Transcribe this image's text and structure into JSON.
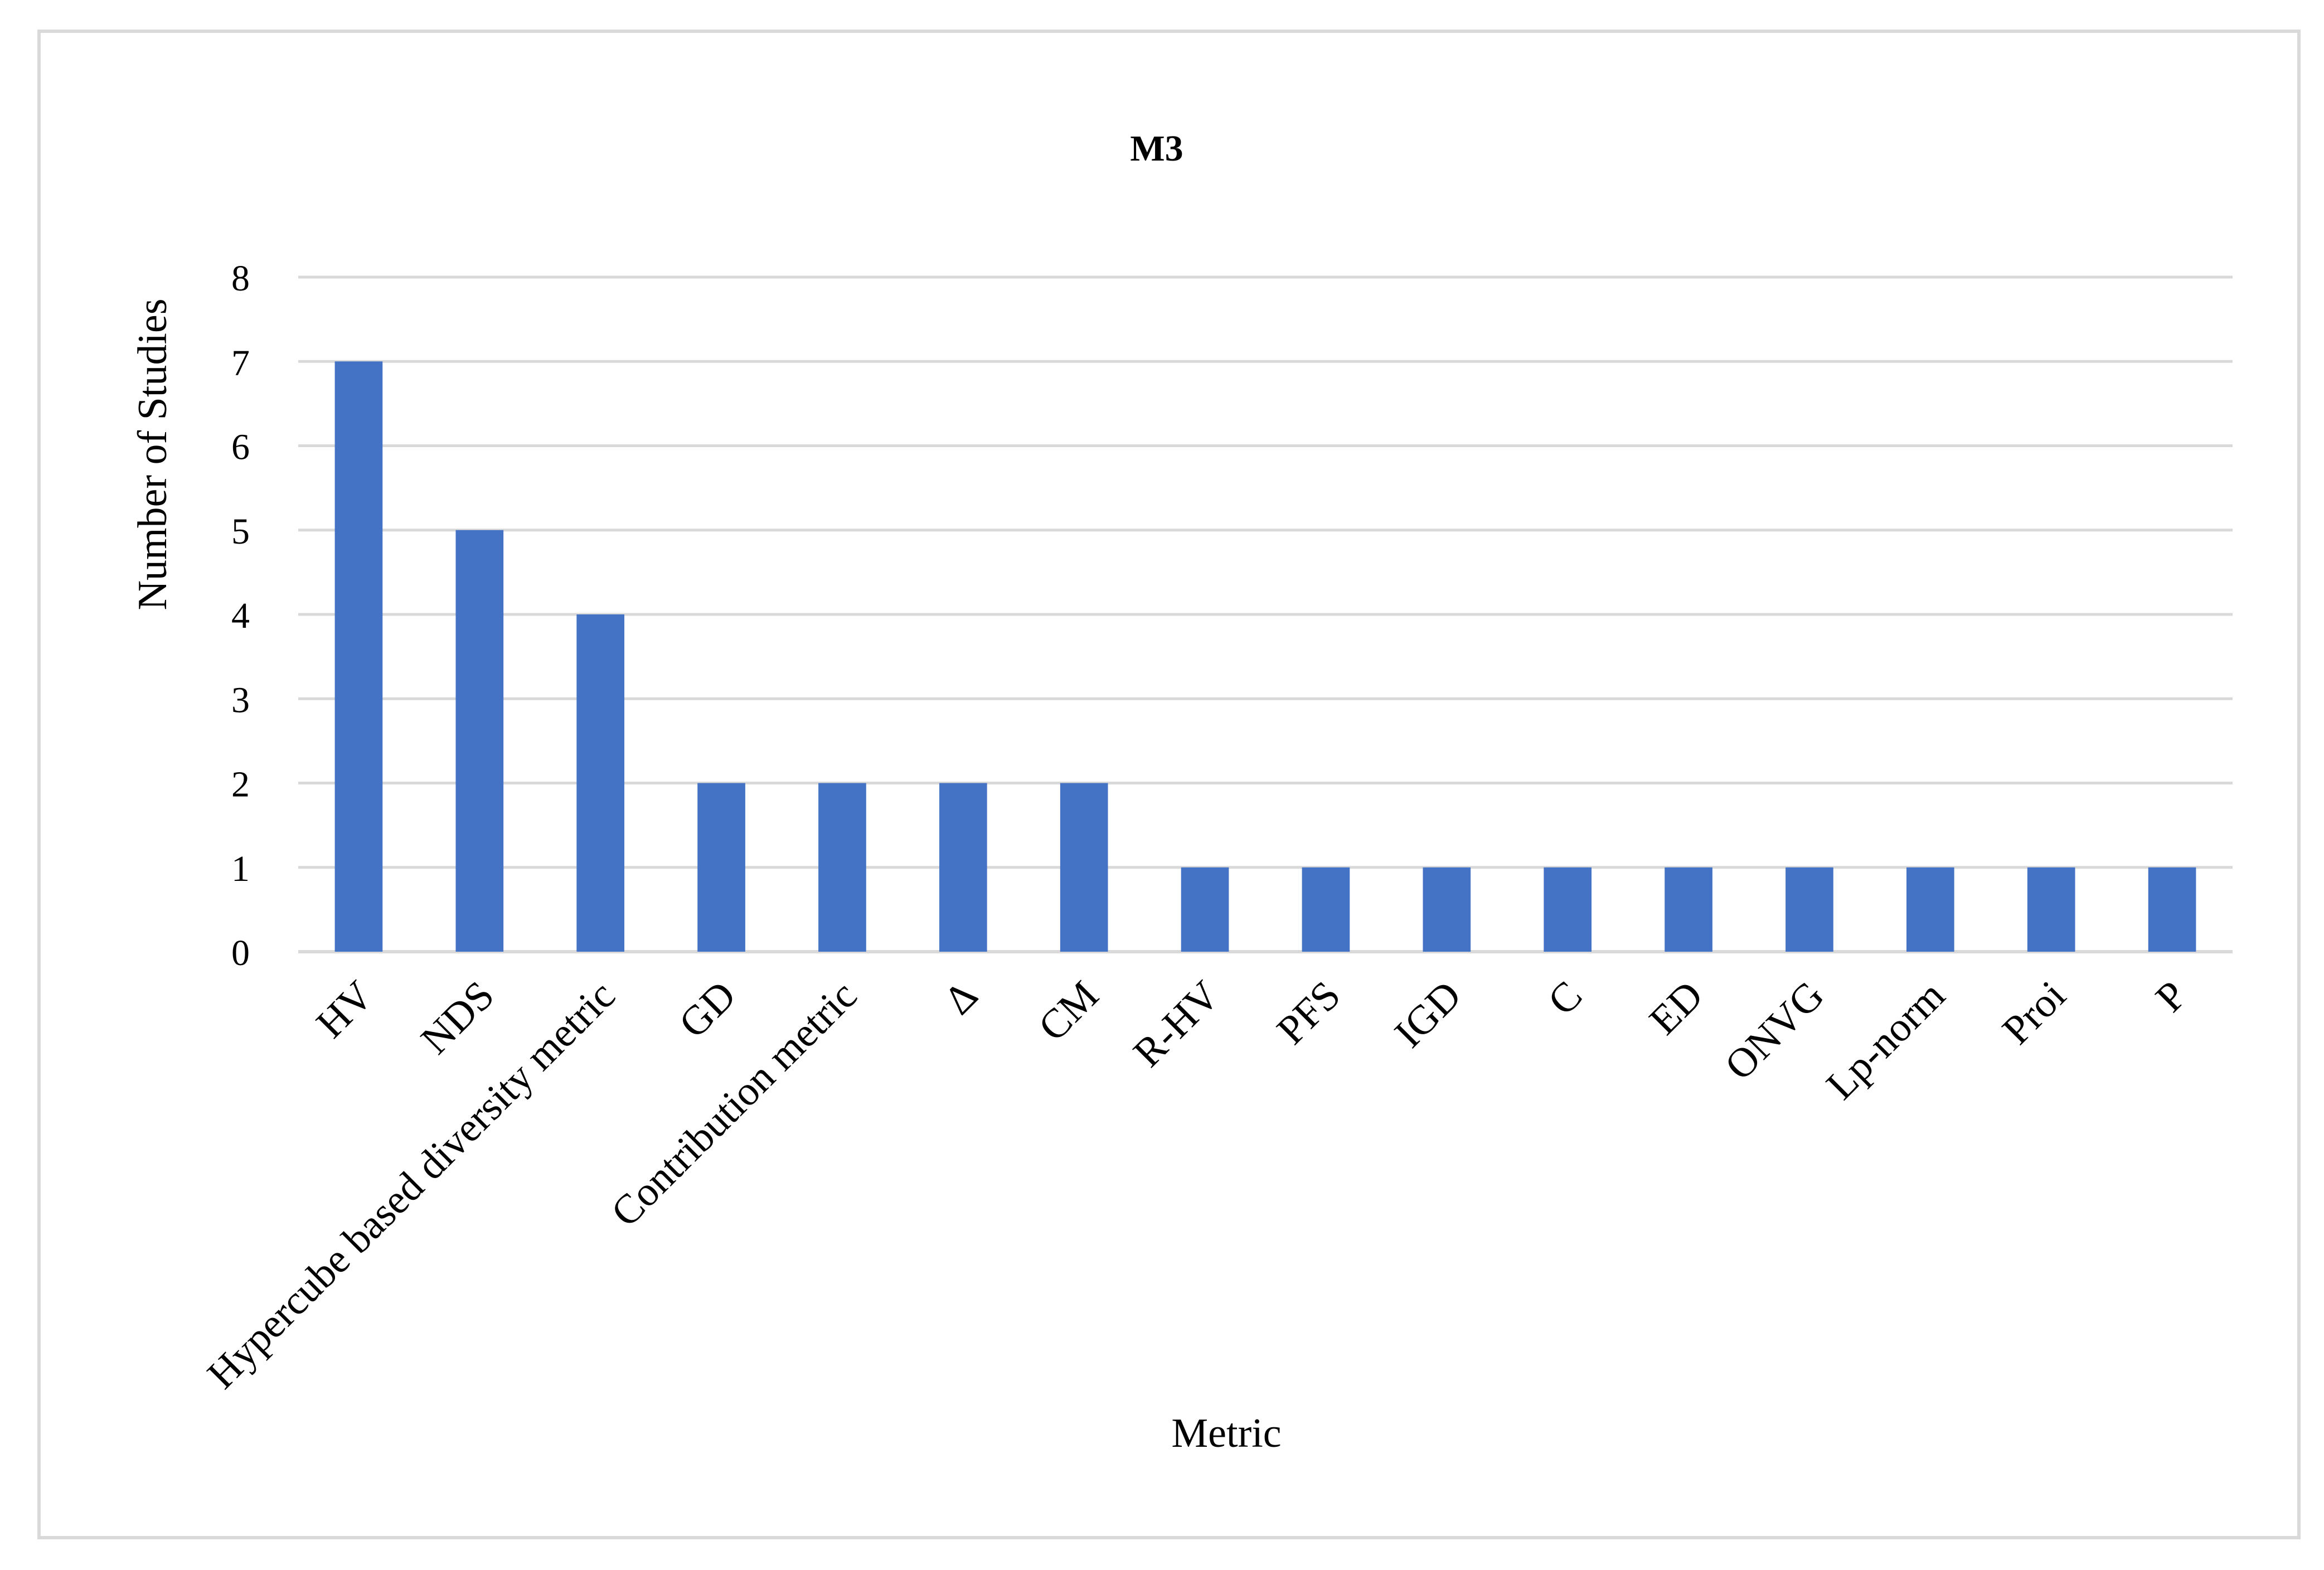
{
  "chart_data": {
    "type": "bar",
    "title": "M3",
    "xlabel": "Metric",
    "ylabel": "Number of Studies",
    "categories": [
      "HV",
      "NDS",
      "Hypercube based diversity metric",
      "GD",
      "Contribution metric",
      "Δ",
      "CM",
      "R-HV",
      "PFS",
      "IGD",
      "C",
      "ED",
      "ONVG",
      "Lp-norm",
      "Proi",
      "P"
    ],
    "values": [
      7,
      5,
      4,
      2,
      2,
      2,
      2,
      1,
      1,
      1,
      1,
      1,
      1,
      1,
      1,
      1
    ],
    "ylim": [
      0,
      8
    ],
    "yticks": [
      0,
      1,
      2,
      3,
      4,
      5,
      6,
      7,
      8
    ],
    "grid": true,
    "legend": "none",
    "colors": {
      "bar": "#4472C4",
      "grid": "#D9D9D9",
      "axis": "#D9D9D9",
      "frame": "#D9D9D9",
      "text": "#000000"
    }
  }
}
